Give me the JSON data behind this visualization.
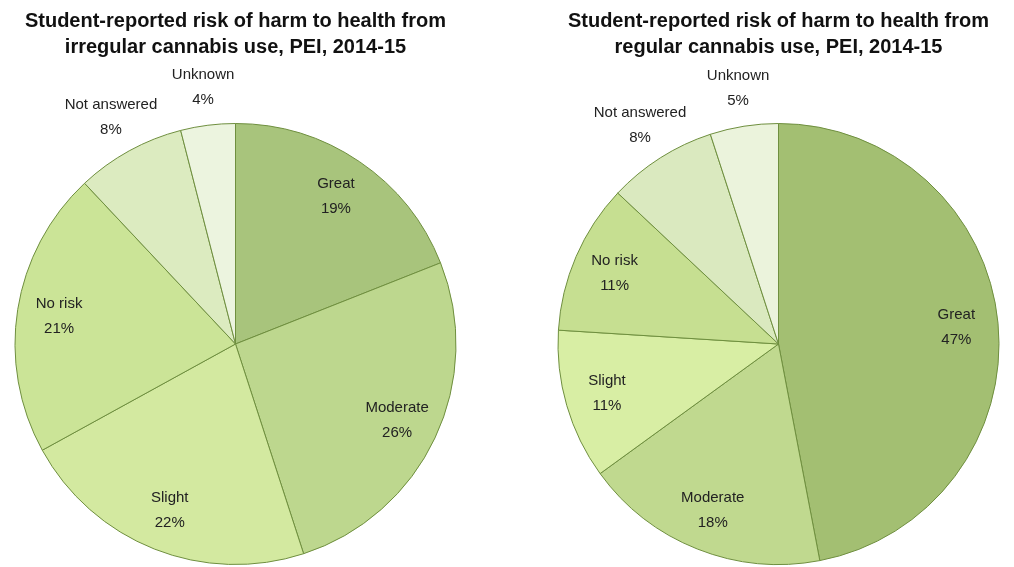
{
  "chart_data": [
    {
      "type": "pie",
      "title": "Student-reported risk of harm to health from irregular cannabis use, PEI, 2014-15",
      "categories": [
        "Great",
        "Moderate",
        "Slight",
        "No risk",
        "Not answered",
        "Unknown"
      ],
      "values": [
        19,
        26,
        22,
        21,
        8,
        4
      ],
      "value_labels": [
        "19%",
        "26%",
        "22%",
        "21%",
        "8%",
        "4%"
      ],
      "colors": [
        "#a8c47c",
        "#bdd78e",
        "#d3e9a0",
        "#cbe497",
        "#dcebc0",
        "#ecf4df"
      ]
    },
    {
      "type": "pie",
      "title": "Student-reported risk of harm to health from regular cannabis use, PEI, 2014-15",
      "categories": [
        "Great",
        "Moderate",
        "Slight",
        "No risk",
        "Not answered",
        "Unknown"
      ],
      "values": [
        47,
        18,
        11,
        11,
        8,
        5
      ],
      "value_labels": [
        "47%",
        "18%",
        "11%",
        "11%",
        "8%",
        "5%"
      ],
      "colors": [
        "#a3bf72",
        "#c0d98f",
        "#d8eea4",
        "#c6df91",
        "#dae9bf",
        "#ebf3dc"
      ]
    }
  ]
}
